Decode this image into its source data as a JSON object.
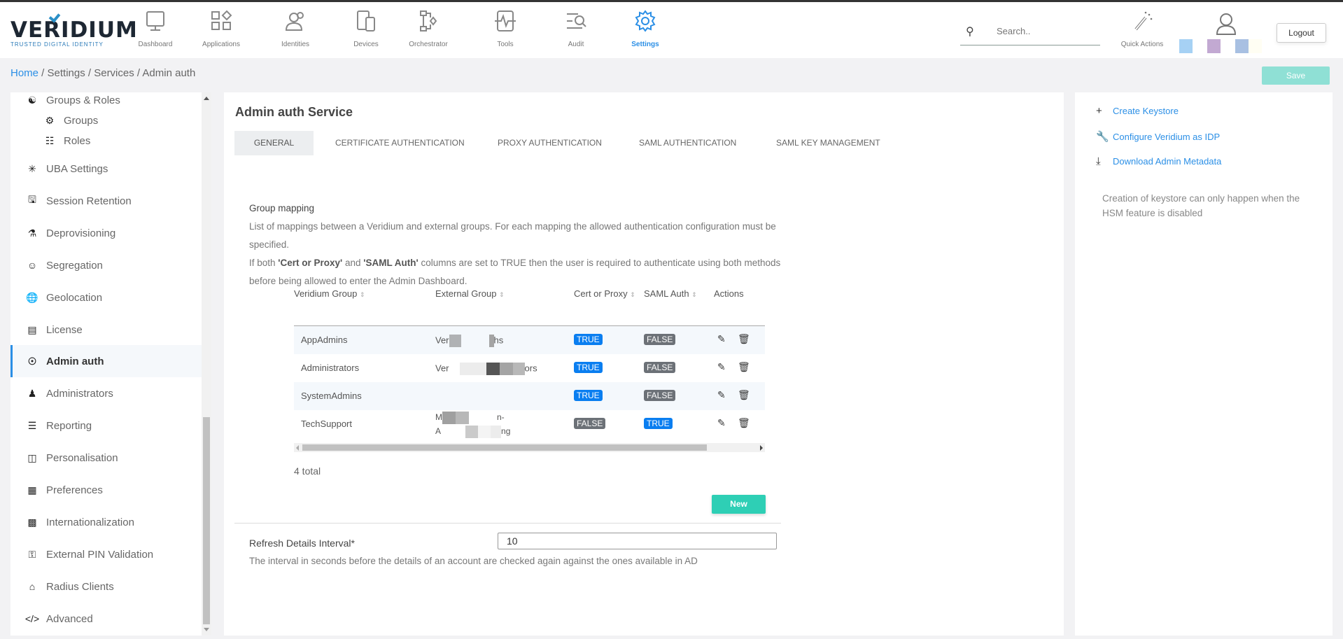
{
  "brand": {
    "name": "VERIDIUM",
    "tagline": "TRUSTED DIGITAL IDENTITY"
  },
  "nav": [
    {
      "label": "Dashboard",
      "icon": "monitor-icon"
    },
    {
      "label": "Applications",
      "icon": "apps-icon"
    },
    {
      "label": "Identities",
      "icon": "users-icon"
    },
    {
      "label": "Devices",
      "icon": "devices-icon"
    },
    {
      "label": "Orchestrator",
      "icon": "flow-icon"
    },
    {
      "label": "Tools",
      "icon": "tools-icon"
    },
    {
      "label": "Audit",
      "icon": "audit-icon"
    },
    {
      "label": "Settings",
      "icon": "gear-icon",
      "active": true
    }
  ],
  "search": {
    "placeholder": "Search.."
  },
  "quick_actions": "Quick Actions",
  "swatches": [
    "#a6d1f4",
    "#c2a9d2",
    "#a8c0e2",
    "#fffef3"
  ],
  "logout": "Logout",
  "breadcrumb": {
    "home": "Home",
    "rest": " / Settings / Services / Admin auth"
  },
  "save": "Save",
  "accent": "#2b8fe6",
  "sidebar": [
    {
      "label": "Groups & Roles",
      "icon": "groups-roles-icon"
    },
    {
      "label": "Groups",
      "icon": "groups-icon",
      "sub": true
    },
    {
      "label": "Roles",
      "icon": "roles-icon",
      "sub": true
    },
    {
      "label": "UBA Settings",
      "icon": "uba-icon"
    },
    {
      "label": "Session Retention",
      "icon": "save-icon"
    },
    {
      "label": "Deprovisioning",
      "icon": "deprovision-icon"
    },
    {
      "label": "Segregation",
      "icon": "segregation-icon"
    },
    {
      "label": "Geolocation",
      "icon": "globe-icon"
    },
    {
      "label": "License",
      "icon": "license-icon"
    },
    {
      "label": "Admin auth",
      "icon": "shield-icon",
      "active": true
    },
    {
      "label": "Administrators",
      "icon": "admin-icon"
    },
    {
      "label": "Reporting",
      "icon": "report-icon"
    },
    {
      "label": "Personalisation",
      "icon": "personalise-icon"
    },
    {
      "label": "Preferences",
      "icon": "preferences-icon"
    },
    {
      "label": "Internationalization",
      "icon": "language-icon"
    },
    {
      "label": "External PIN Validation",
      "icon": "key-icon"
    },
    {
      "label": "Radius Clients",
      "icon": "radius-icon"
    },
    {
      "label": "Advanced",
      "icon": "code-icon"
    }
  ],
  "main": {
    "title": "Admin auth Service",
    "tabs": [
      "GENERAL",
      "CERTIFICATE AUTHENTICATION",
      "PROXY AUTHENTICATION",
      "SAML AUTHENTICATION",
      "SAML KEY MANAGEMENT"
    ],
    "group_mapping": {
      "heading": "Group mapping",
      "line1": "List of mappings between a Veridium and external groups. For each mapping the allowed authentication configuration must be specified.",
      "line2_a": "If both ",
      "line2_b": "'Cert or Proxy'",
      "line2_c": " and ",
      "line2_d": "'SAML Auth'",
      "line2_e": " columns are set to TRUE then the user is required to authenticate using both methods before being allowed to enter the Admin Dashboard."
    },
    "table": {
      "columns": [
        "Veridium Group",
        "External Group",
        "Cert or Proxy",
        "SAML Auth",
        "Actions"
      ],
      "rows": [
        {
          "group": "AppAdmins",
          "ext_a": "Ver",
          "ext_b": "hs",
          "cert": "TRUE",
          "saml": "FALSE"
        },
        {
          "group": "Administrators",
          "ext_a": "Ver",
          "ext_b": "ors",
          "cert": "TRUE",
          "saml": "FALSE"
        },
        {
          "group": "SystemAdmins",
          "ext_a": "",
          "ext_b": "",
          "cert": "TRUE",
          "saml": "FALSE"
        },
        {
          "group": "TechSupport",
          "ext_a": "M",
          "ext_b": "n-",
          "ext_c": "A",
          "ext_d": "ng",
          "cert": "FALSE",
          "saml": "TRUE"
        }
      ],
      "total": "4 total"
    },
    "new": "New",
    "refresh": {
      "label": "Refresh Details Interval*",
      "value": "10",
      "description": "The interval in seconds before the details of an account are checked again against the ones available in AD"
    }
  },
  "right": {
    "links": [
      {
        "label": "Create Keystore",
        "icon": "plus-icon"
      },
      {
        "label": "Configure Veridium as IDP",
        "icon": "wrench-icon"
      },
      {
        "label": "Download Admin Metadata",
        "icon": "download-icon"
      }
    ],
    "note": "Creation of keystore can only happen when the HSM feature is disabled"
  }
}
